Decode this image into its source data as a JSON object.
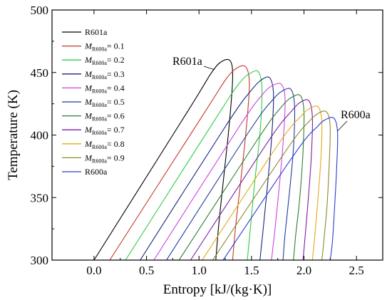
{
  "chart_data": {
    "type": "line",
    "title": "",
    "xlabel": "Entropy [kJ/(kg·K)]",
    "ylabel": "Temperature (K)",
    "xlim": [
      -0.4,
      2.75
    ],
    "ylim": [
      300,
      500
    ],
    "xticks": [
      0.0,
      0.5,
      1.0,
      1.5,
      2.0,
      2.5
    ],
    "xtick_labels": [
      "0.0",
      "0.5",
      "1.0",
      "1.5",
      "2.0",
      "2.5"
    ],
    "yticks": [
      300,
      350,
      400,
      450,
      500
    ],
    "ytick_labels": [
      "300",
      "350",
      "400",
      "450",
      "500"
    ],
    "grid": false,
    "legend_position": "top-left",
    "annotations": [
      {
        "text": "R601a",
        "series": 0
      },
      {
        "text": "R600a",
        "series": 10
      }
    ],
    "series": [
      {
        "name": "R601a",
        "legend_main": "R601a",
        "legend_sub": "",
        "legend_suffix": "",
        "color": "#000000",
        "x": [
          0.0,
          0.9,
          1.12,
          1.22,
          1.3,
          1.32,
          1.29,
          1.24,
          1.19,
          1.16
        ],
        "y": [
          300,
          420,
          450,
          459,
          459,
          445,
          410,
          370,
          330,
          300
        ]
      },
      {
        "name": "M R600a = 0.1",
        "legend_main": "M",
        "legend_sub": "R600a",
        "legend_suffix": "= 0.1",
        "color": "#c0392b",
        "x": [
          0.15,
          1.03,
          1.26,
          1.37,
          1.45,
          1.48,
          1.45,
          1.4,
          1.35,
          1.32
        ],
        "y": [
          300,
          415,
          445,
          454,
          454,
          440,
          405,
          365,
          328,
          300
        ]
      },
      {
        "name": "M R600a = 0.2",
        "legend_main": "M",
        "legend_sub": "R600a",
        "legend_suffix": "= 0.2",
        "color": "#2ecc40",
        "x": [
          0.3,
          1.15,
          1.38,
          1.5,
          1.57,
          1.6,
          1.58,
          1.53,
          1.49,
          1.46
        ],
        "y": [
          300,
          412,
          441,
          450,
          450,
          436,
          401,
          362,
          326,
          300
        ]
      },
      {
        "name": "M R600a = 0.3",
        "legend_main": "M",
        "legend_sub": "R600a",
        "legend_suffix": "= 0.3",
        "color": "#1a237e",
        "x": [
          0.44,
          1.26,
          1.5,
          1.61,
          1.68,
          1.71,
          1.69,
          1.65,
          1.61,
          1.58
        ],
        "y": [
          300,
          408,
          436,
          445,
          445,
          431,
          396,
          358,
          324,
          300
        ]
      },
      {
        "name": "M R600a = 0.4",
        "legend_main": "M",
        "legend_sub": "R600a",
        "legend_suffix": "= 0.4",
        "color": "#cc44dd",
        "x": [
          0.57,
          1.37,
          1.6,
          1.71,
          1.79,
          1.82,
          1.8,
          1.76,
          1.72,
          1.69
        ],
        "y": [
          300,
          405,
          432,
          440,
          440,
          427,
          393,
          355,
          322,
          300
        ]
      },
      {
        "name": "M R600a = 0.5",
        "legend_main": "M",
        "legend_sub": "R600a",
        "legend_suffix": "= 0.5",
        "color": "#1f3d99",
        "x": [
          0.69,
          1.47,
          1.7,
          1.81,
          1.88,
          1.91,
          1.9,
          1.86,
          1.82,
          1.8
        ],
        "y": [
          300,
          402,
          428,
          436,
          436,
          423,
          390,
          353,
          321,
          300
        ]
      },
      {
        "name": "M R600a = 0.6",
        "legend_main": "M",
        "legend_sub": "R600a",
        "legend_suffix": "= 0.6",
        "color": "#2e7d32",
        "x": [
          0.81,
          1.57,
          1.79,
          1.9,
          1.97,
          2.0,
          1.99,
          1.96,
          1.92,
          1.9
        ],
        "y": [
          300,
          398,
          423,
          431,
          431,
          418,
          386,
          350,
          319,
          300
        ]
      },
      {
        "name": "M R600a = 0.7",
        "legend_main": "M",
        "legend_sub": "R600a",
        "legend_suffix": "= 0.7",
        "color": "#7b1fa2",
        "x": [
          0.92,
          1.66,
          1.88,
          1.98,
          2.05,
          2.08,
          2.07,
          2.04,
          2.01,
          1.99
        ],
        "y": [
          300,
          395,
          419,
          427,
          427,
          414,
          383,
          348,
          318,
          300
        ]
      },
      {
        "name": "M R600a = 0.8",
        "legend_main": "M",
        "legend_sub": "R600a",
        "legend_suffix": "= 0.8",
        "color": "#e6a817",
        "x": [
          1.03,
          1.75,
          1.97,
          2.07,
          2.14,
          2.17,
          2.16,
          2.13,
          2.1,
          2.08
        ],
        "y": [
          300,
          392,
          415,
          422,
          422,
          410,
          380,
          346,
          317,
          300
        ]
      },
      {
        "name": "M R600a = 0.9",
        "legend_main": "M",
        "legend_sub": "R600a",
        "legend_suffix": "= 0.9",
        "color": "#8d8a2e",
        "x": [
          1.13,
          1.84,
          2.05,
          2.15,
          2.22,
          2.25,
          2.24,
          2.22,
          2.19,
          2.17
        ],
        "y": [
          300,
          389,
          411,
          418,
          418,
          406,
          377,
          344,
          316,
          300
        ]
      },
      {
        "name": "R600a",
        "legend_main": "R600a",
        "legend_sub": "",
        "legend_suffix": "",
        "color": "#2a3fcf",
        "x": [
          1.23,
          1.92,
          2.13,
          2.22,
          2.29,
          2.32,
          2.31,
          2.29,
          2.27,
          2.25
        ],
        "y": [
          300,
          386,
          407,
          413,
          413,
          401,
          372,
          340,
          314,
          300
        ]
      }
    ]
  }
}
